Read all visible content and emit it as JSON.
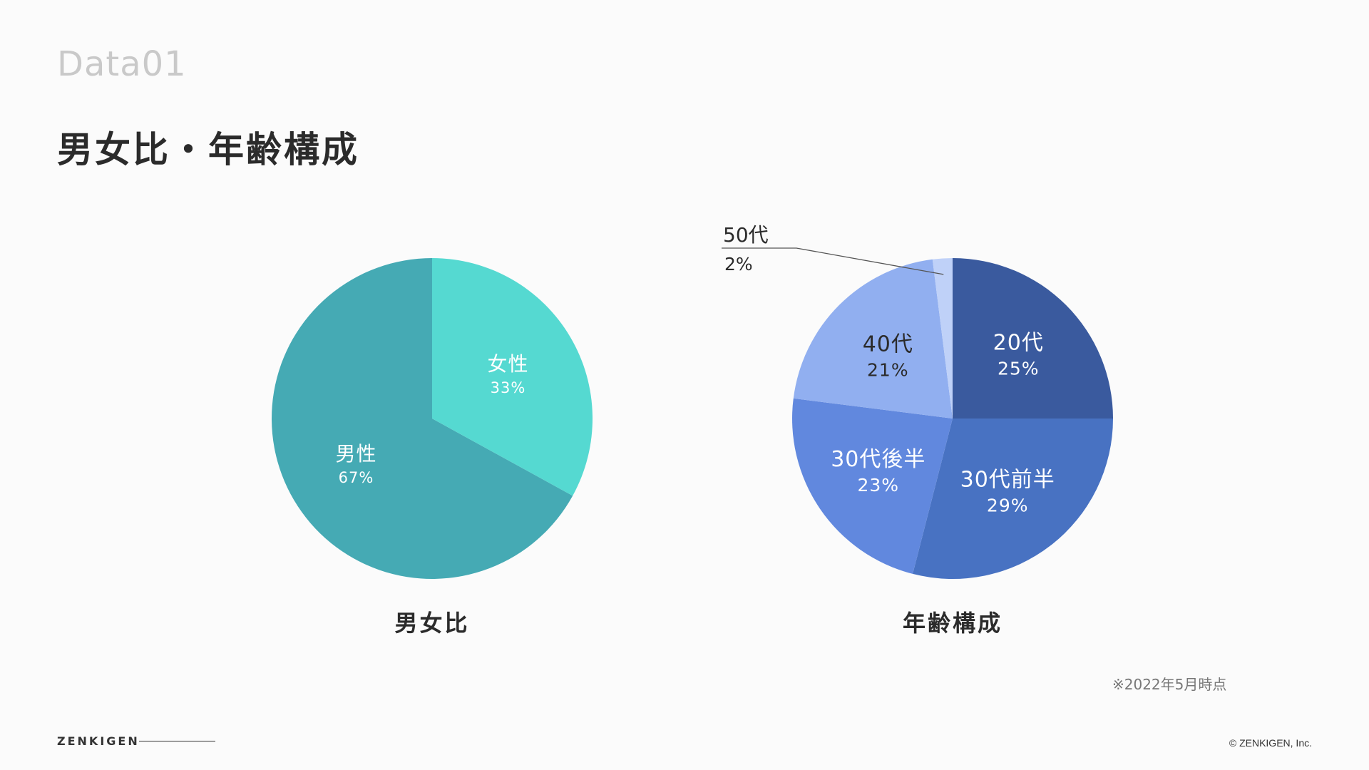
{
  "header": {
    "eyebrow": "Data01",
    "title": "男女比・年齢構成"
  },
  "chart_data": [
    {
      "type": "pie",
      "title": "男女比",
      "slices": [
        {
          "label": "男性",
          "value": 67,
          "value_label": "67%",
          "color": "#45aab4"
        },
        {
          "label": "女性",
          "value": 33,
          "value_label": "33%",
          "color": "#55d9d1"
        }
      ]
    },
    {
      "type": "pie",
      "title": "年齢構成",
      "slices": [
        {
          "label": "20代",
          "value": 25,
          "value_label": "25%",
          "color": "#3a5a9e"
        },
        {
          "label": "30代前半",
          "value": 29,
          "value_label": "29%",
          "color": "#4872c2"
        },
        {
          "label": "30代後半",
          "value": 23,
          "value_label": "23%",
          "color": "#6188de"
        },
        {
          "label": "40代",
          "value": 21,
          "value_label": "21%",
          "color": "#91aff0"
        },
        {
          "label": "50代",
          "value": 2,
          "value_label": "2%",
          "color": "#bfd1f8"
        }
      ]
    }
  ],
  "footnote": "※2022年5月時点",
  "footer": {
    "brand": "ZENKIGEN",
    "copyright": "© ZENKIGEN, Inc."
  }
}
